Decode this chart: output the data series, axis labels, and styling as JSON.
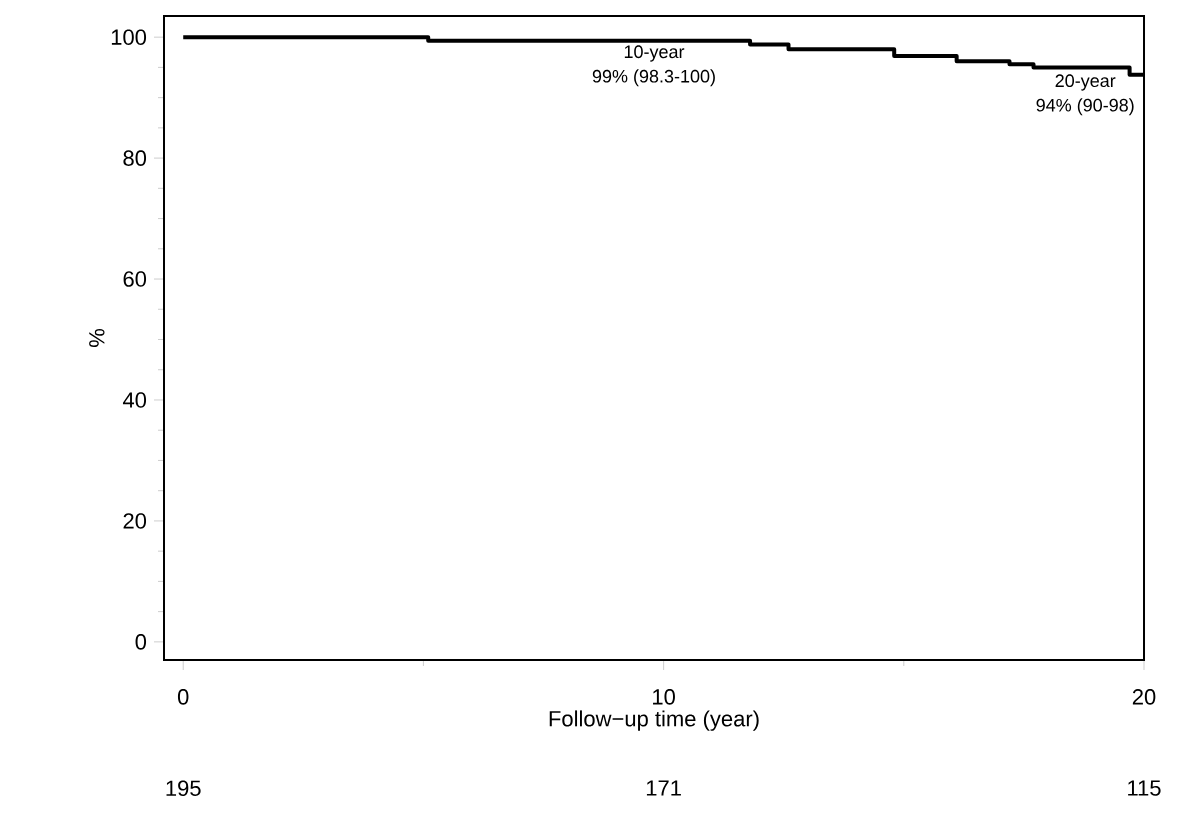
{
  "chart_data": {
    "type": "step",
    "xlabel": "Follow−up time (year)",
    "ylabel": "%",
    "x": [
      0,
      5.1,
      11.8,
      12.6,
      14.8,
      16.1,
      17.2,
      17.7,
      19.7,
      20
    ],
    "values": [
      100,
      99.4,
      98.8,
      98,
      96.9,
      96,
      95.5,
      95,
      93.8,
      93.8
    ],
    "color": "#000000",
    "xlim": [
      -0.4,
      20
    ],
    "ylim": [
      -3,
      103.5
    ],
    "xticks": [
      0,
      10,
      20
    ],
    "yticks": [
      0,
      20,
      40,
      60,
      80,
      100
    ],
    "grid": false,
    "marker": "none",
    "line_style": "solid",
    "annotations": [
      "10-year",
      "99% (98.3-100)",
      "20-year",
      "94% (90-98)",
      "195",
      "171",
      "115"
    ]
  }
}
